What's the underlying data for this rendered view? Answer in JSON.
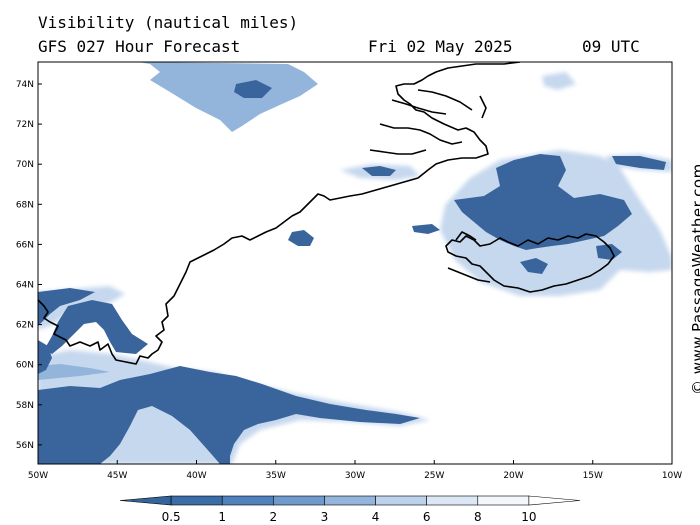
{
  "header": {
    "variable": "Visibility (nautical miles)",
    "model": "GFS 027 Hour Forecast",
    "date": "Fri 02 May 2025",
    "time": "09 UTC"
  },
  "credit": "© www.PassageWeather.com",
  "axes": {
    "lat_labels": [
      "74N",
      "72N",
      "70N",
      "68N",
      "66N",
      "64N",
      "62N",
      "60N",
      "58N",
      "56N"
    ],
    "lon_labels": [
      "50W",
      "45W",
      "40W",
      "35W",
      "30W",
      "25W",
      "20W",
      "15W",
      "10W"
    ]
  },
  "colorbar": {
    "labels": [
      "0.5",
      "1",
      "2",
      "3",
      "4",
      "6",
      "8",
      "10"
    ],
    "colors": [
      "#33649c",
      "#3b6da6",
      "#4f82bd",
      "#6f9acb",
      "#93b5db",
      "#bcd1ea",
      "#dbe7f4",
      "#f3f7fc",
      "#ffffff"
    ]
  },
  "palette": {
    "dense": "#3a659c",
    "mid": "#93b5db",
    "light": "#c6d8ee",
    "coast": "#000000"
  }
}
